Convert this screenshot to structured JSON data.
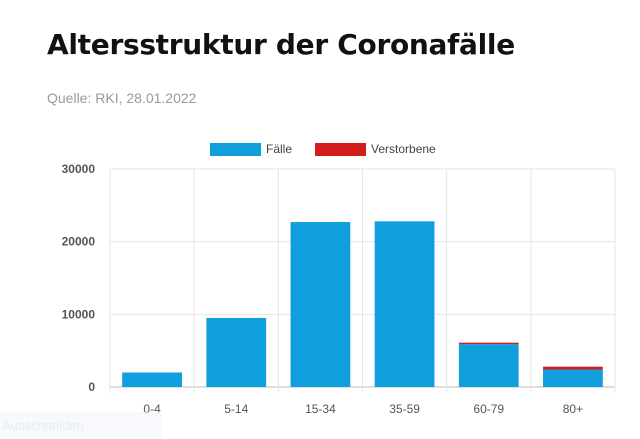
{
  "header": {
    "title": "Altersstruktur der Coronafälle",
    "source": "Quelle: RKI, 28.01.2022"
  },
  "overlay_text": "Ausschneiden",
  "colors": {
    "faelle": "#0f9fdd",
    "verstorbene": "#d31c1c",
    "grid": "#e6e6e6",
    "axis": "#bdbdbd"
  },
  "chart_data": {
    "type": "bar",
    "stacked": true,
    "title": "",
    "xlabel": "",
    "ylabel": "",
    "categories": [
      "0-4",
      "5-14",
      "15-34",
      "35-59",
      "60-79",
      "80+"
    ],
    "series": [
      {
        "name": "Fälle",
        "values": [
          2000,
          9500,
          22700,
          22800,
          5900,
          2400
        ]
      },
      {
        "name": "Verstorbene",
        "values": [
          0,
          0,
          0,
          0,
          200,
          400
        ]
      }
    ],
    "ylim": [
      0,
      30000
    ],
    "yticks": [
      0,
      10000,
      20000,
      30000
    ],
    "grid": true,
    "legend": "top-center"
  }
}
